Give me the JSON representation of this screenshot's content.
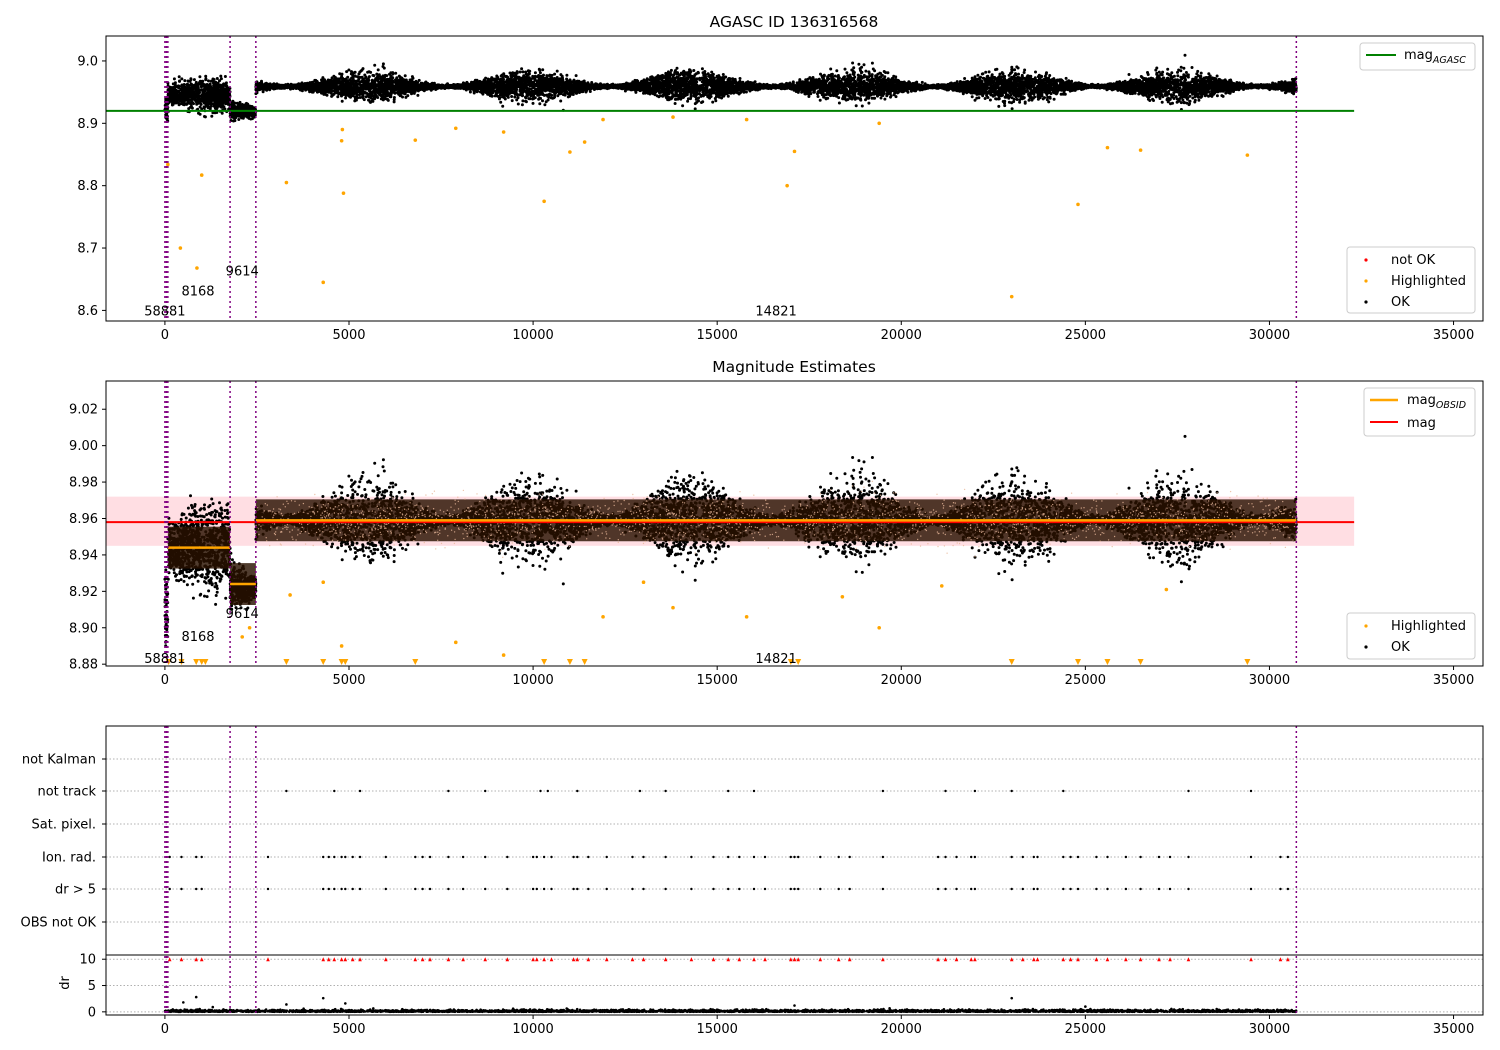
{
  "chart_data": [
    {
      "type": "scatter",
      "title": "AGASC ID 136316568",
      "xlim": [
        -1600,
        35800
      ],
      "ylim": [
        8.583,
        9.04
      ],
      "xticks": [
        0,
        5000,
        10000,
        15000,
        20000,
        25000,
        30000,
        35000
      ],
      "yticks": [
        8.6,
        8.7,
        8.8,
        8.9,
        9.0
      ],
      "ytick_labels": [
        "8.6",
        "8.7",
        "8.8",
        "8.9",
        "9.0"
      ],
      "lines": [
        {
          "name": "mag_AGASC",
          "color": "#008000",
          "y": 8.92,
          "x": [
            -1600,
            32300
          ]
        }
      ],
      "legend_top": {
        "label_main": "mag",
        "label_sub": "AGASC",
        "placement": "top-right"
      },
      "legend_bottom": {
        "placement": "lower-right",
        "entries": [
          {
            "label": "not OK",
            "color": "#ff0000"
          },
          {
            "label": "Highlighted",
            "color": "#ffa500"
          },
          {
            "label": "OK",
            "color": "#000000"
          }
        ]
      },
      "obsid_labels": [
        {
          "text": "58881",
          "x": 0,
          "y": 8.6
        },
        {
          "text": "8168",
          "x": 900,
          "y": 8.632
        },
        {
          "text": "9614",
          "x": 2100,
          "y": 8.664
        },
        {
          "text": "14821",
          "x": 16600,
          "y": 8.6
        }
      ],
      "obs_boundaries": [
        0,
        40,
        80,
        1770,
        2470,
        30730
      ],
      "segments": [
        {
          "x0": 0,
          "x1": 80,
          "mean": 8.925,
          "spread": 0.02
        },
        {
          "x0": 80,
          "x1": 1770,
          "mean": 8.945,
          "spread": 0.012
        },
        {
          "x0": 1770,
          "x1": 2470,
          "mean": 8.919,
          "spread": 0.01
        },
        {
          "x0": 2470,
          "x1": 30730,
          "mean": 8.959,
          "spread": 0.012
        }
      ],
      "highlighted_points": [
        {
          "x": 80,
          "y": 8.834
        },
        {
          "x": 420,
          "y": 8.7
        },
        {
          "x": 870,
          "y": 8.668
        },
        {
          "x": 1000,
          "y": 8.817
        },
        {
          "x": 3300,
          "y": 8.805
        },
        {
          "x": 4300,
          "y": 8.645
        },
        {
          "x": 4800,
          "y": 8.872
        },
        {
          "x": 4820,
          "y": 8.89
        },
        {
          "x": 4850,
          "y": 8.788
        },
        {
          "x": 6800,
          "y": 8.873
        },
        {
          "x": 7900,
          "y": 8.892
        },
        {
          "x": 9200,
          "y": 8.886
        },
        {
          "x": 10300,
          "y": 8.775
        },
        {
          "x": 11000,
          "y": 8.854
        },
        {
          "x": 11400,
          "y": 8.87
        },
        {
          "x": 11900,
          "y": 8.906
        },
        {
          "x": 13800,
          "y": 8.91
        },
        {
          "x": 15800,
          "y": 8.906
        },
        {
          "x": 16900,
          "y": 8.8
        },
        {
          "x": 17100,
          "y": 8.855
        },
        {
          "x": 19400,
          "y": 8.9
        },
        {
          "x": 23000,
          "y": 8.622
        },
        {
          "x": 24800,
          "y": 8.77
        },
        {
          "x": 25600,
          "y": 8.861
        },
        {
          "x": 26500,
          "y": 8.857
        },
        {
          "x": 29400,
          "y": 8.849
        }
      ]
    },
    {
      "type": "scatter",
      "title": "Magnitude Estimates",
      "xlim": [
        -1600,
        35800
      ],
      "ylim": [
        8.879,
        9.0355
      ],
      "xticks": [
        0,
        5000,
        10000,
        15000,
        20000,
        25000,
        30000,
        35000
      ],
      "yticks": [
        8.88,
        8.9,
        8.92,
        8.94,
        8.96,
        8.98,
        9.0,
        9.02
      ],
      "ytick_labels": [
        "8.88",
        "8.90",
        "8.92",
        "8.94",
        "8.96",
        "8.98",
        "9.00",
        "9.02"
      ],
      "mag": {
        "value": 8.958,
        "band": [
          8.945,
          8.972
        ],
        "color": "#ff0000",
        "x": [
          -1600,
          32300
        ]
      },
      "mag_obsid": [
        {
          "x0": 80,
          "x1": 1770,
          "y": 8.944
        },
        {
          "x0": 1770,
          "x1": 2470,
          "y": 8.924
        },
        {
          "x0": 2470,
          "x1": 30730,
          "y": 8.959
        }
      ],
      "legend_top": {
        "placement": "top-right",
        "entries": [
          {
            "label_main": "mag",
            "label_sub": "OBSID",
            "color": "#ffa500"
          },
          {
            "label_main": "mag",
            "label_sub": "",
            "color": "#ff0000"
          }
        ]
      },
      "legend_bottom": {
        "placement": "lower-right",
        "entries": [
          {
            "label": "Highlighted",
            "color": "#ffa500"
          },
          {
            "label": "OK",
            "color": "#000000"
          }
        ]
      },
      "obsid_labels": [
        {
          "text": "58881",
          "x": 0,
          "y": 8.8835
        },
        {
          "text": "8168",
          "x": 900,
          "y": 8.8955
        },
        {
          "text": "9614",
          "x": 2100,
          "y": 8.908
        },
        {
          "text": "14821",
          "x": 16600,
          "y": 8.8835
        }
      ],
      "segments": [
        {
          "x0": 0,
          "x1": 80,
          "mean": 8.91,
          "spread": 0.02
        },
        {
          "x0": 80,
          "x1": 1770,
          "mean": 8.944,
          "spread": 0.011
        },
        {
          "x0": 1770,
          "x1": 2470,
          "mean": 8.922,
          "spread": 0.008
        },
        {
          "x0": 2470,
          "x1": 30730,
          "mean": 8.959,
          "spread": 0.011
        }
      ],
      "highlighted_points": [
        {
          "x": 3400,
          "y": 8.918
        },
        {
          "x": 4800,
          "y": 8.89
        },
        {
          "x": 7900,
          "y": 8.892
        },
        {
          "x": 9200,
          "y": 8.885
        },
        {
          "x": 11900,
          "y": 8.906
        },
        {
          "x": 13800,
          "y": 8.911
        },
        {
          "x": 15800,
          "y": 8.906
        },
        {
          "x": 19400,
          "y": 8.9
        },
        {
          "x": 27200,
          "y": 8.921
        },
        {
          "x": 2100,
          "y": 8.895
        },
        {
          "x": 2300,
          "y": 8.9
        },
        {
          "x": 13000,
          "y": 8.925
        },
        {
          "x": 18400,
          "y": 8.917
        },
        {
          "x": 21100,
          "y": 8.923
        },
        {
          "x": 4300,
          "y": 8.925
        }
      ],
      "clipped_markers_x": [
        100,
        450,
        850,
        1000,
        1100,
        3300,
        4300,
        4800,
        4900,
        6800,
        10300,
        11000,
        11400,
        17000,
        17200,
        23000,
        24800,
        25600,
        26500,
        29400
      ]
    },
    {
      "type": "scatter",
      "xlim": [
        -1600,
        35800
      ],
      "xticks": [
        0,
        5000,
        10000,
        15000,
        20000,
        25000,
        30000,
        35000
      ],
      "flag_rows": [
        "not Kalman",
        "not track",
        "Sat. pixel.",
        "Ion. rad.",
        "dr > 5",
        "OBS not OK"
      ],
      "flag_x": {
        "not Kalman": [],
        "not track": [
          3300,
          4600,
          5300,
          7700,
          8700,
          10200,
          10400,
          11200,
          12900,
          13600,
          15300,
          16000,
          19500,
          21200,
          22000,
          23000,
          24400,
          27800,
          29500
        ],
        "Sat. pixel.": [],
        "Ion. rad.": [
          130,
          450,
          850,
          1000,
          2800,
          4300,
          4450,
          4600,
          4800,
          4900,
          5100,
          5300,
          6000,
          6800,
          7000,
          7200,
          7700,
          8100,
          8700,
          9300,
          10000,
          10100,
          10300,
          10500,
          11100,
          11200,
          11500,
          12000,
          12700,
          13000,
          13600,
          14300,
          14900,
          15300,
          15600,
          16000,
          16300,
          17000,
          17100,
          17200,
          17800,
          18300,
          18600,
          19500,
          21000,
          21200,
          21500,
          21900,
          22000,
          23000,
          23300,
          23600,
          23700,
          24400,
          24600,
          24800,
          25300,
          25600,
          26100,
          26500,
          27000,
          27300,
          27800,
          29500,
          30300,
          30500
        ],
        "dr > 5": [
          130,
          450,
          850,
          1000,
          2800,
          4300,
          4450,
          4600,
          4800,
          4900,
          5100,
          5300,
          6000,
          6800,
          7000,
          7200,
          7700,
          8100,
          8700,
          9300,
          10000,
          10100,
          10300,
          10500,
          11100,
          11200,
          11500,
          12000,
          12700,
          13000,
          13600,
          14300,
          14900,
          15300,
          15600,
          16000,
          16300,
          17000,
          17100,
          17200,
          17800,
          18300,
          18600,
          19500,
          21000,
          21200,
          21500,
          21900,
          22000,
          23000,
          23300,
          23600,
          23700,
          24400,
          24600,
          24800,
          25300,
          25600,
          26100,
          26500,
          27000,
          27300,
          27800,
          29500,
          30300,
          30500
        ],
        "OBS not OK": []
      },
      "dr": {
        "ylabel": "dr",
        "ylim": [
          -0.6,
          10.8
        ],
        "yticks": [
          0,
          5,
          10
        ],
        "ytick_labels": [
          "0",
          "5",
          "10"
        ],
        "outliers": [
          {
            "x": 500,
            "y": 1.8
          },
          {
            "x": 850,
            "y": 2.8
          },
          {
            "x": 1300,
            "y": 0.9
          },
          {
            "x": 3300,
            "y": 1.4
          },
          {
            "x": 4300,
            "y": 2.6
          },
          {
            "x": 4900,
            "y": 1.6
          },
          {
            "x": 23000,
            "y": 2.6
          },
          {
            "x": 25000,
            "y": 1.0
          },
          {
            "x": 17100,
            "y": 1.2
          }
        ],
        "clipped_value": 10,
        "clipped_x": [
          130,
          450,
          850,
          1000,
          2800,
          4300,
          4450,
          4600,
          4800,
          4900,
          5100,
          5300,
          6000,
          6800,
          7000,
          7200,
          7700,
          8100,
          8700,
          9300,
          10000,
          10100,
          10300,
          10500,
          11100,
          11200,
          11500,
          12000,
          12700,
          13000,
          13600,
          14300,
          14900,
          15300,
          15600,
          16000,
          16300,
          17000,
          17100,
          17200,
          17800,
          18300,
          18600,
          19500,
          21000,
          21200,
          21500,
          21900,
          22000,
          23000,
          23300,
          23600,
          23700,
          24400,
          24600,
          24800,
          25300,
          25600,
          26100,
          26500,
          27000,
          27300,
          27800,
          29500,
          30300,
          30500
        ]
      }
    }
  ],
  "colors": {
    "ok": "#000000",
    "highlighted": "#ffa500",
    "not_ok": "#ff0000",
    "boundary": "#800080",
    "agasc_line": "#008000",
    "mag_line": "#ff0000",
    "mag_band": "#ffb6c1",
    "mag_obsid": "#ffa500",
    "grid": "#b0b0b0",
    "band_fill": "#2a1100"
  }
}
